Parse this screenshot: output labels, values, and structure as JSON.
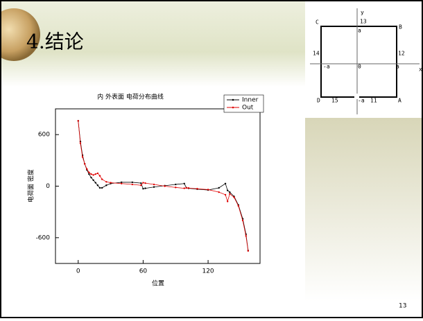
{
  "slide": {
    "title": "4.结论",
    "page_number": "13"
  },
  "diagram": {
    "corners": [
      "C",
      "B",
      "D",
      "A"
    ],
    "edge_numbers": [
      "13",
      "14",
      "12",
      "15",
      "11"
    ],
    "axis_labels": [
      "x",
      "y"
    ],
    "marks": [
      "a",
      "-a",
      "0",
      "a",
      "-a"
    ]
  },
  "chart_data": {
    "type": "line",
    "title": "内 外表面 电荷分布曲线",
    "x_label": "位置",
    "y_label": "电荷面 密度",
    "x": [
      0,
      2,
      4,
      6,
      8,
      10,
      12,
      14,
      16,
      18,
      20,
      22,
      26,
      30,
      40,
      50,
      58,
      60,
      62,
      70,
      80,
      90,
      98,
      100,
      102,
      110,
      120,
      130,
      136,
      138,
      140,
      144,
      148,
      152,
      155,
      157
    ],
    "series": [
      {
        "name": "Inner",
        "color": "#000000",
        "values": [
          760,
          520,
          360,
          260,
          190,
          140,
          100,
          70,
          40,
          10,
          -20,
          -20,
          10,
          30,
          45,
          45,
          35,
          -30,
          -25,
          -10,
          5,
          20,
          30,
          -20,
          -25,
          -35,
          -45,
          -20,
          30,
          -50,
          -70,
          -120,
          -220,
          -380,
          -560,
          -750
        ]
      },
      {
        "name": "Out",
        "color": "#e00000",
        "values": [
          760,
          500,
          340,
          260,
          200,
          160,
          140,
          130,
          140,
          150,
          120,
          80,
          50,
          40,
          30,
          20,
          10,
          40,
          35,
          20,
          0,
          -15,
          -25,
          -20,
          -22,
          -30,
          -40,
          -70,
          -100,
          -178,
          -90,
          -130,
          -230,
          -400,
          -580,
          -754
        ]
      }
    ],
    "xlim": [
      -21,
      168
    ],
    "ylim": [
      -900,
      900
    ],
    "xticks": [
      0,
      60,
      120
    ],
    "yticks": [
      -600,
      0,
      600
    ],
    "legend": "upper right"
  }
}
